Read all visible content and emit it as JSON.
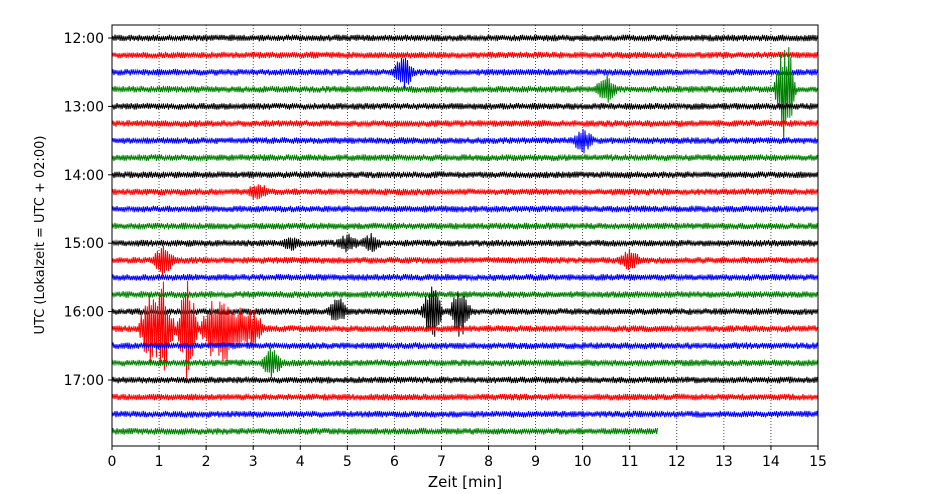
{
  "chart_data": {
    "type": "line",
    "title": "",
    "xlabel": "Zeit  [min]",
    "ylabel": "UTC (Lokalzeit = UTC + 02:00)",
    "xlim": [
      0,
      15
    ],
    "x_ticks": [
      "0",
      "1",
      "2",
      "3",
      "4",
      "5",
      "6",
      "7",
      "8",
      "9",
      "10",
      "11",
      "12",
      "13",
      "14",
      "15"
    ],
    "y_ticks": [
      "12:00",
      "13:00",
      "14:00",
      "15:00",
      "16:00",
      "17:00"
    ],
    "trace_interval_min": 15,
    "grid": "vertical dotted lines at each minute",
    "legend": "none",
    "color_cycle": [
      "#000000",
      "#ff0000",
      "#0000ff",
      "#008000"
    ],
    "traces": [
      {
        "start": "12:00",
        "color": "#000000",
        "end_min": 15,
        "events": []
      },
      {
        "start": "12:15",
        "color": "#ff0000",
        "end_min": 15,
        "events": []
      },
      {
        "start": "12:30",
        "color": "#0000ff",
        "end_min": 15,
        "events": [
          {
            "t": 6.2,
            "amp": 18
          }
        ]
      },
      {
        "start": "12:45",
        "color": "#008000",
        "end_min": 15,
        "events": [
          {
            "t": 10.5,
            "amp": 14
          },
          {
            "t": 14.3,
            "amp": 60
          }
        ]
      },
      {
        "start": "13:00",
        "color": "#000000",
        "end_min": 15,
        "events": []
      },
      {
        "start": "13:15",
        "color": "#ff0000",
        "end_min": 15,
        "events": []
      },
      {
        "start": "13:30",
        "color": "#0000ff",
        "end_min": 15,
        "events": [
          {
            "t": 10.0,
            "amp": 12
          }
        ]
      },
      {
        "start": "13:45",
        "color": "#008000",
        "end_min": 15,
        "events": []
      },
      {
        "start": "14:00",
        "color": "#000000",
        "end_min": 15,
        "events": []
      },
      {
        "start": "14:15",
        "color": "#ff0000",
        "end_min": 15,
        "events": [
          {
            "t": 3.1,
            "amp": 10
          }
        ]
      },
      {
        "start": "14:30",
        "color": "#0000ff",
        "end_min": 15,
        "events": []
      },
      {
        "start": "14:45",
        "color": "#008000",
        "end_min": 15,
        "events": []
      },
      {
        "start": "15:00",
        "color": "#000000",
        "end_min": 15,
        "events": [
          {
            "t": 3.8,
            "amp": 6
          },
          {
            "t": 5.0,
            "amp": 9
          },
          {
            "t": 5.5,
            "amp": 8
          }
        ]
      },
      {
        "start": "15:15",
        "color": "#ff0000",
        "end_min": 15,
        "events": [
          {
            "t": 1.1,
            "amp": 18
          },
          {
            "t": 11.0,
            "amp": 10
          }
        ]
      },
      {
        "start": "15:30",
        "color": "#0000ff",
        "end_min": 15,
        "events": []
      },
      {
        "start": "15:45",
        "color": "#008000",
        "end_min": 15,
        "events": []
      },
      {
        "start": "16:00",
        "color": "#000000",
        "end_min": 15,
        "events": [
          {
            "t": 4.8,
            "amp": 14
          },
          {
            "t": 6.8,
            "amp": 30
          },
          {
            "t": 7.4,
            "amp": 28
          }
        ]
      },
      {
        "start": "16:15",
        "color": "#ff0000",
        "end_min": 15,
        "events": [
          {
            "t": 0.8,
            "amp": 40
          },
          {
            "t": 1.1,
            "amp": 48
          },
          {
            "t": 1.6,
            "amp": 52
          },
          {
            "t": 2.1,
            "amp": 30
          },
          {
            "t": 2.4,
            "amp": 38
          },
          {
            "t": 2.7,
            "amp": 22
          },
          {
            "t": 3.0,
            "amp": 20
          }
        ]
      },
      {
        "start": "16:30",
        "color": "#0000ff",
        "end_min": 15,
        "events": []
      },
      {
        "start": "16:45",
        "color": "#008000",
        "end_min": 15,
        "events": [
          {
            "t": 3.4,
            "amp": 14
          }
        ]
      },
      {
        "start": "17:00",
        "color": "#000000",
        "end_min": 15,
        "events": []
      },
      {
        "start": "17:15",
        "color": "#ff0000",
        "end_min": 15,
        "events": []
      },
      {
        "start": "17:30",
        "color": "#0000ff",
        "end_min": 15,
        "events": []
      },
      {
        "start": "17:45",
        "color": "#008000",
        "end_min": 11.6,
        "events": []
      }
    ]
  }
}
